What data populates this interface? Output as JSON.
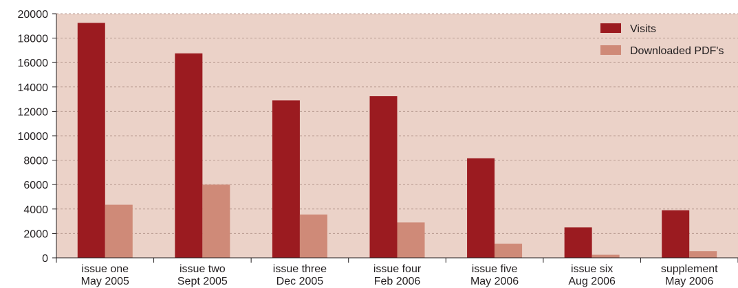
{
  "colors": {
    "plot_background": "#ebd2c8",
    "visits": "#9b1b20",
    "downloads": "#cf8a78",
    "gridline": "#b89a90",
    "axis": "#231f20"
  },
  "chart_data": {
    "type": "bar",
    "categories": [
      [
        "issue one",
        "May 2005"
      ],
      [
        "issue two",
        "Sept 2005"
      ],
      [
        "issue three",
        "Dec 2005"
      ],
      [
        "issue four",
        "Feb 2006"
      ],
      [
        "issue five",
        "May 2006"
      ],
      [
        "issue six",
        "Aug 2006"
      ],
      [
        "supplement",
        "May 2006"
      ]
    ],
    "series": [
      {
        "name": "Visits",
        "values": [
          19250,
          16750,
          12900,
          13250,
          8150,
          2500,
          3900
        ]
      },
      {
        "name": "Downloaded PDF's",
        "values": [
          4350,
          6000,
          3550,
          2900,
          1150,
          250,
          550
        ]
      }
    ],
    "ylim": [
      0,
      20000
    ],
    "yticks": [
      "0",
      "2000",
      "4000",
      "6000",
      "8000",
      "10000",
      "12000",
      "14000",
      "16000",
      "18000",
      "20000"
    ],
    "grid": true,
    "legend": "top-right"
  }
}
